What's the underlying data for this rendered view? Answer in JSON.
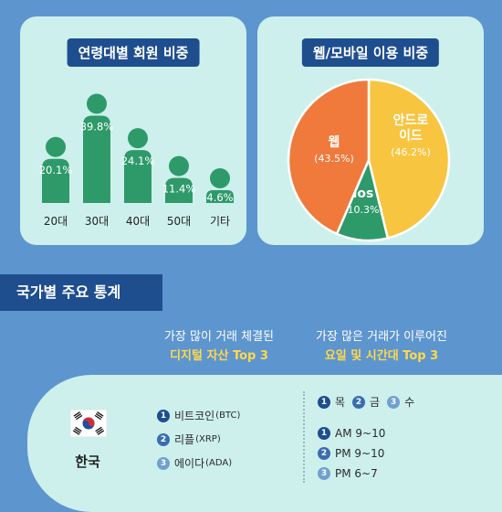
{
  "age_panel": {
    "title": "연령대별 회원 비중"
  },
  "web_panel": {
    "title": "웹/모바일 이용 비중"
  },
  "chart_data": [
    {
      "type": "bar",
      "title": "연령대별 회원 비중",
      "categories": [
        "20대",
        "30대",
        "40대",
        "50대",
        "기타"
      ],
      "values": [
        20.1,
        39.8,
        24.1,
        11.4,
        4.6
      ],
      "value_labels": [
        "20.1%",
        "39.8%",
        "24.1%",
        "11.4%",
        "4.6%"
      ],
      "unit": "%",
      "color": "#2e9a6a"
    },
    {
      "type": "pie",
      "title": "웹/모바일 이용 비중",
      "slices": [
        {
          "name": "안드로이드",
          "label_lines": [
            "안드로",
            "이드"
          ],
          "value": 46.2,
          "value_label": "(46.2%)",
          "color": "#f7c540"
        },
        {
          "name": "ios",
          "label_lines": [
            "ios"
          ],
          "value": 10.3,
          "value_label": "(10.3%)",
          "color": "#2e9a6a"
        },
        {
          "name": "웹",
          "label_lines": [
            "웹"
          ],
          "value": 43.5,
          "value_label": "(43.5%)",
          "color": "#ef7a3c"
        }
      ]
    }
  ],
  "stats": {
    "title": "국가별 주요 통계",
    "assets_header": {
      "line1": "가장 많이 거래 체결된",
      "line2": "디지털 자산 Top 3"
    },
    "times_header": {
      "line1": "가장 많은 거래가 이루어진",
      "line2": "요일 및 시간대 Top 3"
    },
    "country": "한국",
    "assets": [
      {
        "rank": "1",
        "name": "비트코인",
        "ticker": "(BTC)"
      },
      {
        "rank": "2",
        "name": "리플",
        "ticker": "(XRP)"
      },
      {
        "rank": "3",
        "name": "에이다",
        "ticker": "(ADA)"
      }
    ],
    "days": [
      {
        "rank": "1",
        "name": "목"
      },
      {
        "rank": "2",
        "name": "금"
      },
      {
        "rank": "3",
        "name": "수"
      }
    ],
    "times": [
      {
        "rank": "1",
        "name": "AM 9~10"
      },
      {
        "rank": "2",
        "name": "PM 9~10"
      },
      {
        "rank": "3",
        "name": "PM 6~7"
      }
    ]
  },
  "colors": {
    "background": "#5d95cf",
    "panel": "#cdf0ec",
    "navy": "#1f4e8f",
    "highlight": "#ffd94a"
  }
}
